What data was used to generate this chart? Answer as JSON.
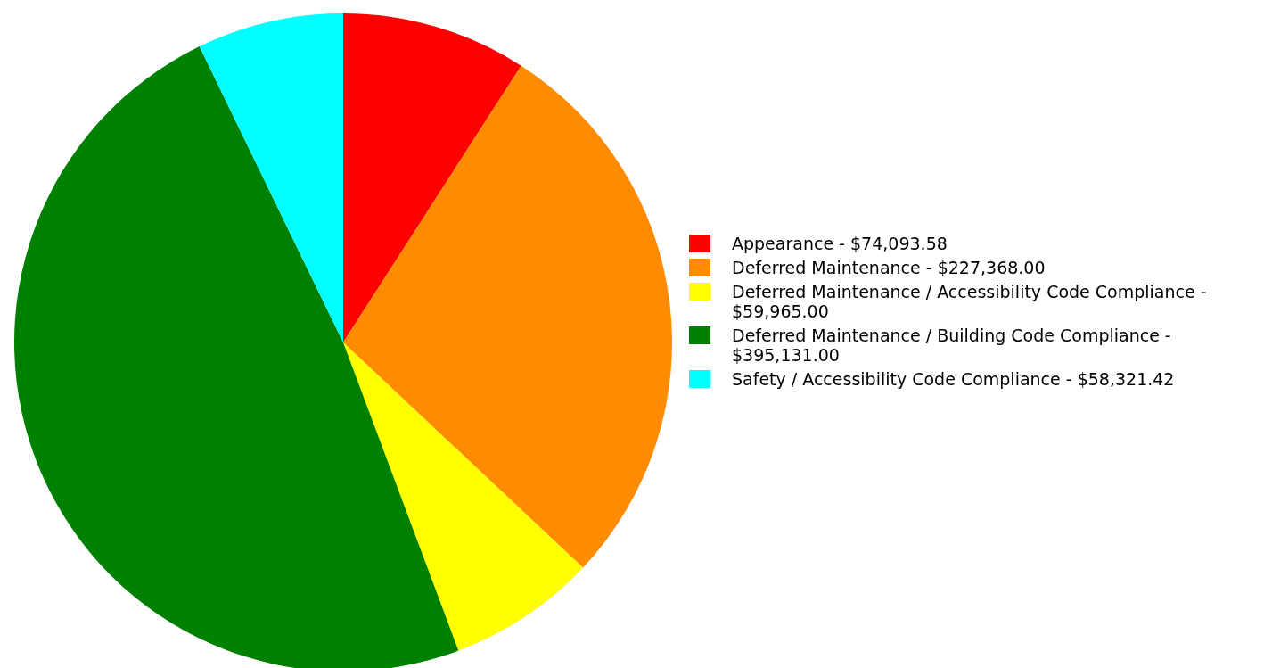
{
  "chart_data": {
    "type": "pie",
    "categories": [
      "Appearance - $74,093.58",
      "Deferred Maintenance - $227,368.00",
      "Deferred Maintenance / Accessibility Code Compliance - $59,965.00",
      "Deferred Maintenance / Building Code Compliance - $395,131.00",
      "Safety / Accessibility Code Compliance - $58,321.42"
    ],
    "values": [
      9.1,
      27.9,
      7.3,
      48.5,
      7.2
    ],
    "colors": [
      "#ff0000",
      "#ff8c00",
      "#ffff00",
      "#008000",
      "#00ffff"
    ],
    "legend": "right"
  }
}
